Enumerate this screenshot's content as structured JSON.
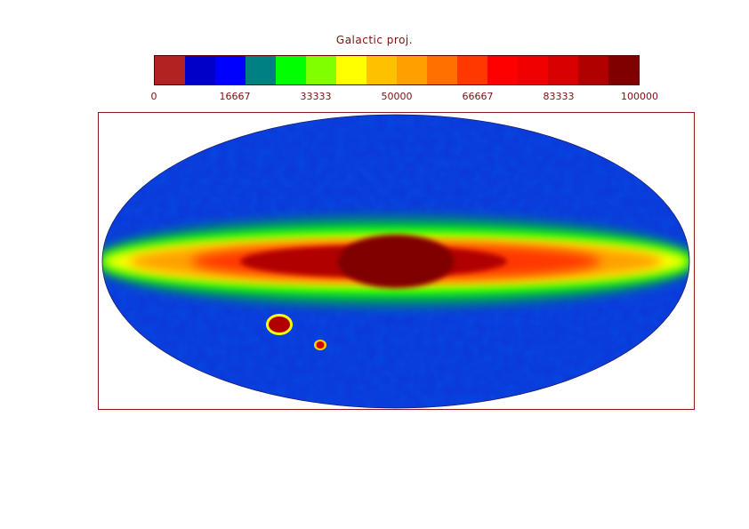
{
  "chart_data": {
    "type": "heatmap",
    "projection": "mollweide",
    "title": "Galactic proj.",
    "colorbar": {
      "range": [
        0,
        100000
      ],
      "tick_labels": [
        "0",
        "16667",
        "33333",
        "50000",
        "66667",
        "83333",
        "100000"
      ],
      "colors": [
        "#b22222",
        "#0000c8",
        "#0000ff",
        "#008080",
        "#00ff00",
        "#80ff00",
        "#ffff00",
        "#ffc000",
        "#ffa000",
        "#ff7000",
        "#ff3800",
        "#ff0000",
        "#f00000",
        "#d80000",
        "#b00000",
        "#800000"
      ]
    },
    "features": [
      {
        "name": "galactic plane band",
        "level": 66667
      },
      {
        "name": "galactic center bulge",
        "level": 100000
      },
      {
        "name": "large magellanic cloud",
        "level": 90000
      },
      {
        "name": "small magellanic cloud",
        "level": 85000
      }
    ]
  }
}
